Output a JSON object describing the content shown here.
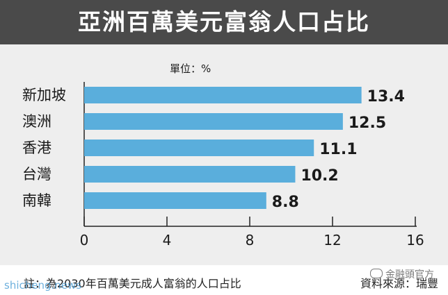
{
  "header": {
    "title": "亞洲百萬美元富翁人口占比"
  },
  "chart_data": {
    "type": "bar",
    "orientation": "horizontal",
    "unit_label": "單位：%",
    "categories": [
      "新加坡",
      "澳洲",
      "香港",
      "台灣",
      "南韓"
    ],
    "values": [
      13.4,
      12.5,
      11.1,
      10.2,
      8.8
    ],
    "value_labels": [
      "13.4",
      "12.5",
      "11.1",
      "10.2",
      "8.8"
    ],
    "xlim": [
      0,
      16
    ],
    "x_ticks": [
      0,
      4,
      8,
      12,
      16
    ],
    "x_tick_labels": [
      "0",
      "4",
      "8",
      "12",
      "16"
    ],
    "bar_color": "#5aaedc",
    "grid": false
  },
  "footer": {
    "note": "註：為2030年百萬美元成人富翁的人口占比",
    "source": "資料來源：瑞豐"
  },
  "watermarks": {
    "site": "shicheng.news",
    "brand": "金融頭官方"
  },
  "colors": {
    "title_bg": "#4a4a4a",
    "plot_bg": "#eeeeee",
    "bar": "#5aaedc",
    "text": "#1a1a1a"
  }
}
